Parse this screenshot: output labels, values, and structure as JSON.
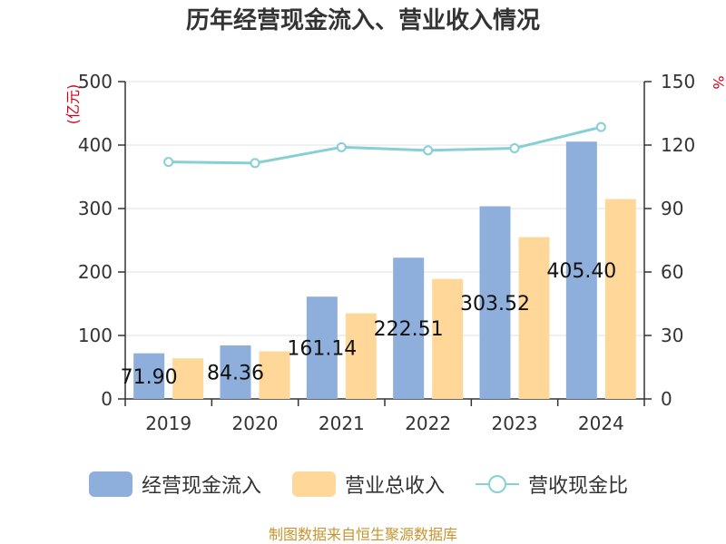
{
  "colors": {
    "cash_inflow": "#8eaedb",
    "revenue": "#ffd899",
    "ratio": "#86d0d5",
    "axis": "#333333",
    "grid": "#e0e0e0",
    "unit": "#d0021b",
    "footer": "#c8932f"
  },
  "chart_data": {
    "type": "bar",
    "title": "历年经营现金流入、营业收入情况",
    "categories": [
      "2019",
      "2020",
      "2021",
      "2022",
      "2023",
      "2024"
    ],
    "ylabel_left": "(亿元)",
    "ylabel_right": "%",
    "ylim_left": [
      0,
      500
    ],
    "ylim_right": [
      0,
      150
    ],
    "yticks_left": [
      "0",
      "100",
      "200",
      "300",
      "400",
      "500"
    ],
    "yticks_right": [
      "0",
      "30",
      "60",
      "90",
      "120",
      "150"
    ],
    "grid": true,
    "legend_position": "bottom",
    "series": [
      {
        "name": "经营现金流入",
        "type": "bar",
        "axis": "left",
        "values": [
          71.9,
          84.36,
          161.14,
          222.51,
          303.52,
          405.4
        ],
        "data_labels": [
          "71.90",
          "84.36",
          "161.14",
          "222.51",
          "303.52",
          "405.40"
        ]
      },
      {
        "name": "营业总收入",
        "type": "bar",
        "axis": "left",
        "values": [
          64.0,
          75.0,
          135.0,
          189.0,
          255.0,
          315.0
        ]
      },
      {
        "name": "营收现金比",
        "type": "line",
        "axis": "right",
        "values": [
          112.0,
          111.5,
          119.0,
          117.5,
          118.5,
          128.5
        ]
      }
    ]
  },
  "footer": {
    "source": "制图数据来自恒生聚源数据库"
  }
}
